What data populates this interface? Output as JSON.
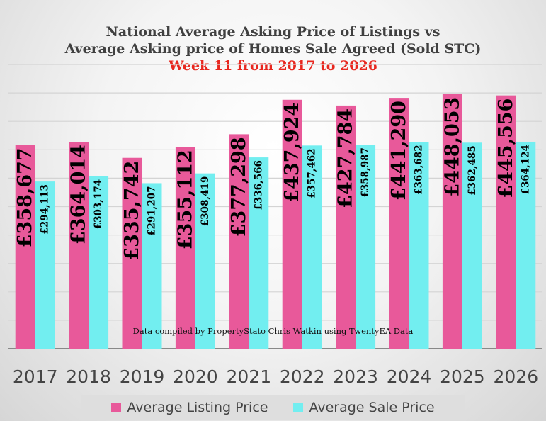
{
  "chart_data": {
    "type": "bar",
    "title": "National Average Asking Price of Listings vs",
    "title_line2": "Average Asking price of Homes Sale Agreed (Sold STC)",
    "subtitle": "Week 11 from 2017 to 2026",
    "annotation": "Data compiled by PropertyStato Chris Watkin using TwentyEA Data",
    "categories": [
      "2017",
      "2018",
      "2019",
      "2020",
      "2021",
      "2022",
      "2023",
      "2024",
      "2025",
      "2026"
    ],
    "series": [
      {
        "name": "Average Listing Price",
        "color": "#e8599a",
        "values": [
          358677,
          364014,
          335742,
          355112,
          377298,
          437924,
          427784,
          441290,
          448053,
          445556
        ],
        "labels": [
          "£358,677",
          "£364,014",
          "£335,742",
          "£355,112",
          "£377,298",
          "£437,924",
          "£427,784",
          "£441,290",
          "£448,053",
          "£445,556"
        ]
      },
      {
        "name": "Average Sale Price",
        "color": "#72eef0",
        "values": [
          294113,
          303174,
          291207,
          308419,
          336566,
          357462,
          358987,
          363682,
          362485,
          364124
        ],
        "labels": [
          "£294,113",
          "£303,174",
          "£291,207",
          "£308,419",
          "£336,566",
          "£357,462",
          "£358,987",
          "£363,682",
          "£362,485",
          "£364,124"
        ]
      }
    ],
    "ylim": [
      0,
      500000
    ],
    "grid": true,
    "legend": "bottom"
  }
}
